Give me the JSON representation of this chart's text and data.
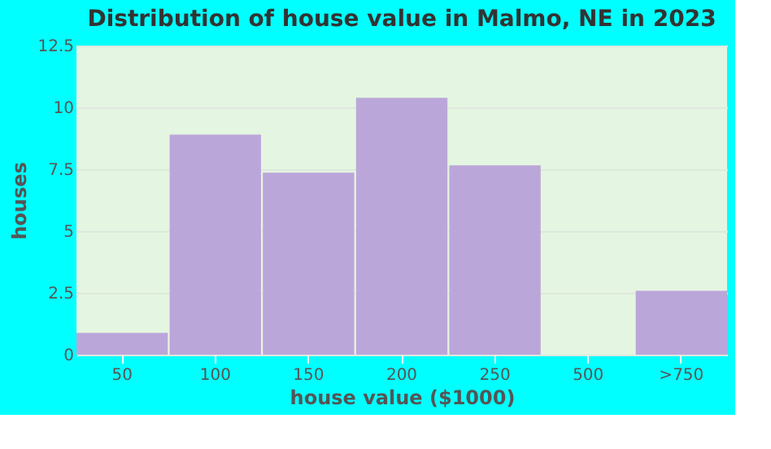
{
  "chart_data": {
    "type": "bar",
    "title": "Distribution of house value in Malmo, NE in 2023",
    "xlabel": "house value ($1000)",
    "ylabel": "houses",
    "categories": [
      "50",
      "100",
      "150",
      "200",
      "250",
      "500",
      ">750"
    ],
    "values": [
      0.88,
      8.9,
      7.36,
      10.39,
      7.66,
      0,
      2.58
    ],
    "color": "#bba6da",
    "ylim": [
      0,
      12.5
    ],
    "yticks": [
      0,
      2.5,
      5,
      7.5,
      10,
      12.5
    ],
    "grid": "y"
  }
}
